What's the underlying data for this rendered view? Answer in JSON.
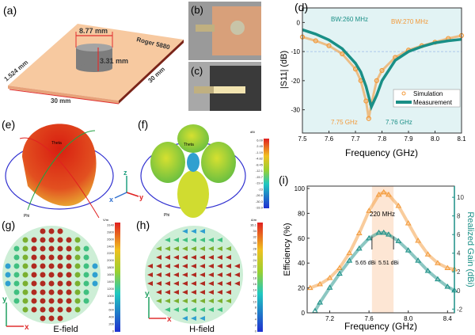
{
  "panels": {
    "a": {
      "label": "(a)",
      "substrate": "Roger 5880",
      "diameter": "8.77 mm",
      "height": "3.31 mm",
      "thickness": "1.524 mm",
      "width": "30 mm",
      "length": "30 mm"
    },
    "b": {
      "label": "(b)"
    },
    "c": {
      "label": "(c)"
    },
    "e": {
      "label": "(e)",
      "theta": "Theta",
      "phi": "Phi"
    },
    "f": {
      "label": "(f)",
      "unit": "dBi",
      "ticks": [
        "6.09",
        "2.45",
        "-1.19",
        "-4.82",
        "-8.45",
        "-12.1",
        "-15.7",
        "-19.4",
        "-23",
        "-26.6",
        "-30.3",
        "-33.9"
      ],
      "theta": "Theta",
      "phi": "Phi"
    },
    "axes_triad": {
      "z": "z",
      "x": "x",
      "y": "y"
    },
    "g": {
      "label": "(g)",
      "caption": "E-field",
      "unit": "V/m",
      "ticks": [
        "3140",
        "2800",
        "2600",
        "2400",
        "2200",
        "2000",
        "1800",
        "1600",
        "1400",
        "1200",
        "1000",
        "800",
        "600",
        "400",
        "200",
        "0"
      ],
      "x": "x",
      "y": "y"
    },
    "h": {
      "label": "(h)",
      "caption": "H-field",
      "unit": "A/m",
      "ticks": [
        "36.1",
        "34",
        "32",
        "30",
        "28",
        "26",
        "24",
        "22",
        "20",
        "18",
        "16",
        "14",
        "12",
        "10",
        "8",
        "6",
        "4",
        "2",
        "0"
      ],
      "x": "x",
      "y": "y"
    }
  },
  "colors": {
    "simulation": "#f39a3a",
    "measurement": "#1a8f86",
    "band": "#fde6d4"
  },
  "chart_data": [
    {
      "panel": "(d)",
      "type": "line",
      "xlabel": "Frequency (GHz)",
      "ylabel": "|S11| (dB)",
      "xlim": [
        7.5,
        8.1
      ],
      "ylim": [
        -38,
        5
      ],
      "xticks": [
        "7.5",
        "7.6",
        "7.7",
        "7.8",
        "7.9",
        "8.0",
        "8.1"
      ],
      "yticks": [
        "0",
        "-10",
        "-20",
        "-30"
      ],
      "reference_line": -10,
      "legend": "bottom-right",
      "series": [
        {
          "name": "Simulation",
          "x": [
            7.5,
            7.55,
            7.6,
            7.65,
            7.7,
            7.72,
            7.74,
            7.75,
            7.76,
            7.78,
            7.8,
            7.85,
            7.9,
            7.95,
            8.0,
            8.05,
            8.1
          ],
          "y": [
            -5,
            -6.3,
            -8,
            -10.8,
            -16,
            -20,
            -27,
            -33,
            -28,
            -20,
            -16.5,
            -12,
            -9.5,
            -8,
            -6.8,
            -5.5,
            -4.5
          ]
        },
        {
          "name": "Measurement",
          "x": [
            7.5,
            7.55,
            7.6,
            7.65,
            7.7,
            7.72,
            7.74,
            7.76,
            7.78,
            7.8,
            7.85,
            7.9,
            7.95,
            8.0,
            8.05,
            8.1
          ],
          "y": [
            -2.5,
            -4,
            -6,
            -9,
            -14,
            -17,
            -22,
            -29,
            -25,
            -20,
            -13,
            -10,
            -8.3,
            -7,
            -6.3,
            -5.8
          ]
        }
      ],
      "annotations": [
        "BW:260 MHz",
        "BW:270 MHz",
        "7.75 GHz",
        "7.76 GHz"
      ]
    },
    {
      "panel": "(i)",
      "type": "scatter",
      "xlabel": "Frequency (GHz)",
      "ylabel": "Efficiency (%)",
      "y2label": "Realized Gain (dBi)",
      "xlim": [
        6.97,
        8.47
      ],
      "ylim": [
        0,
        100
      ],
      "y2lim": [
        -2.4,
        11.2
      ],
      "xticks": [
        "7.2",
        "7.6",
        "8.0",
        "8.4"
      ],
      "yticks": [
        "0",
        "20",
        "40",
        "60",
        "80",
        "100"
      ],
      "y2ticks": [
        "-2",
        "0",
        "2",
        "4",
        "6",
        "8",
        "10"
      ],
      "band": [
        7.63,
        7.85
      ],
      "series": [
        {
          "name": "Efficiency",
          "axis": "left",
          "x": [
            7.0,
            7.1,
            7.2,
            7.3,
            7.4,
            7.5,
            7.6,
            7.7,
            7.75,
            7.8,
            7.9,
            8.0,
            8.1,
            8.2,
            8.3,
            8.4,
            8.47
          ],
          "y": [
            20,
            23,
            28,
            36,
            48,
            64,
            82,
            95,
            97,
            95,
            86,
            72,
            58,
            47,
            40,
            36,
            35
          ]
        },
        {
          "name": "Realized Gain",
          "axis": "right",
          "x": [
            7.05,
            7.1,
            7.2,
            7.3,
            7.4,
            7.5,
            7.6,
            7.7,
            7.75,
            7.8,
            7.9,
            8.0,
            8.1,
            8.2,
            8.3,
            8.4,
            8.47
          ],
          "y": [
            -2.2,
            -1.3,
            0.3,
            1.8,
            3.2,
            4.5,
            5.6,
            6.2,
            6.2,
            6.0,
            5.3,
            4.3,
            3.2,
            2.1,
            1.2,
            0.4,
            0.0
          ]
        }
      ],
      "annotations": [
        "220 MHz",
        "5.65 dBi",
        "5.51 dBi"
      ]
    }
  ]
}
